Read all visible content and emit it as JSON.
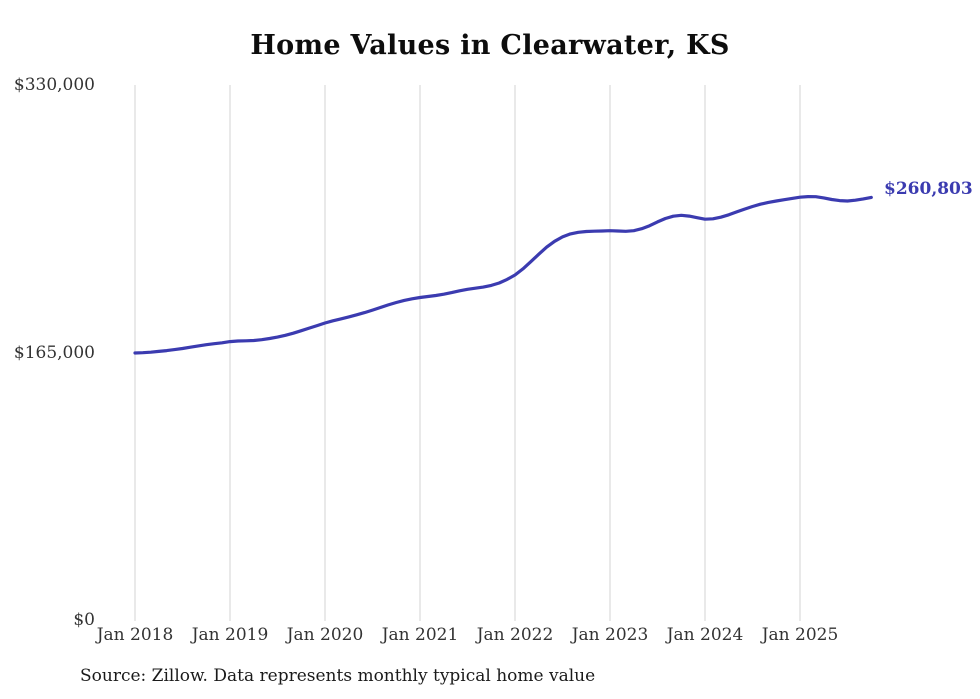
{
  "title": "Home Values in Clearwater, KS",
  "source_note": "Source: Zillow. Data represents monthly typical home value",
  "colors": {
    "line": "#3b3bb0",
    "grid": "#d3d3d3",
    "accent_label": "#3b3bb0",
    "tick_text": "#333333",
    "title_text": "#0d0d0d"
  },
  "chart_data": {
    "type": "line",
    "title": "Home Values in Clearwater, KS",
    "xlabel": "",
    "ylabel": "",
    "ylim": [
      0,
      330000
    ],
    "grid": "vertical-only",
    "legend": "none",
    "x_start": "Jan 2018",
    "interval": "monthly",
    "x_tick_labels": [
      "Jan 2018",
      "Jan 2019",
      "Jan 2020",
      "Jan 2021",
      "Jan 2022",
      "Jan 2023",
      "Jan 2024",
      "Jan 2025"
    ],
    "y_tick_labels": [
      "$330,000",
      "$165,000",
      "$0"
    ],
    "final_value": 260803,
    "final_value_label": "$260,803",
    "series": [
      {
        "name": "Typical home value",
        "values": [
          165000,
          165200,
          165500,
          166000,
          166500,
          167100,
          167800,
          168600,
          169400,
          170100,
          170700,
          171300,
          172000,
          172400,
          172500,
          172700,
          173200,
          173900,
          174800,
          175900,
          177200,
          178700,
          180300,
          181900,
          183500,
          184800,
          186000,
          187200,
          188500,
          189900,
          191400,
          193000,
          194600,
          196100,
          197400,
          198400,
          199200,
          199800,
          200400,
          201200,
          202200,
          203300,
          204200,
          204900,
          205600,
          206600,
          208100,
          210300,
          213000,
          216800,
          221200,
          225800,
          230200,
          233800,
          236500,
          238300,
          239300,
          239800,
          240000,
          240100,
          240300,
          240100,
          239900,
          240300,
          241500,
          243400,
          245700,
          247800,
          249200,
          249800,
          249300,
          248300,
          247400,
          247600,
          248600,
          250100,
          251900,
          253600,
          255200,
          256600,
          257700,
          258600,
          259400,
          260200,
          260900,
          261300,
          261200,
          260500,
          259500,
          258800,
          258600,
          259100,
          259900,
          260803
        ]
      }
    ]
  }
}
